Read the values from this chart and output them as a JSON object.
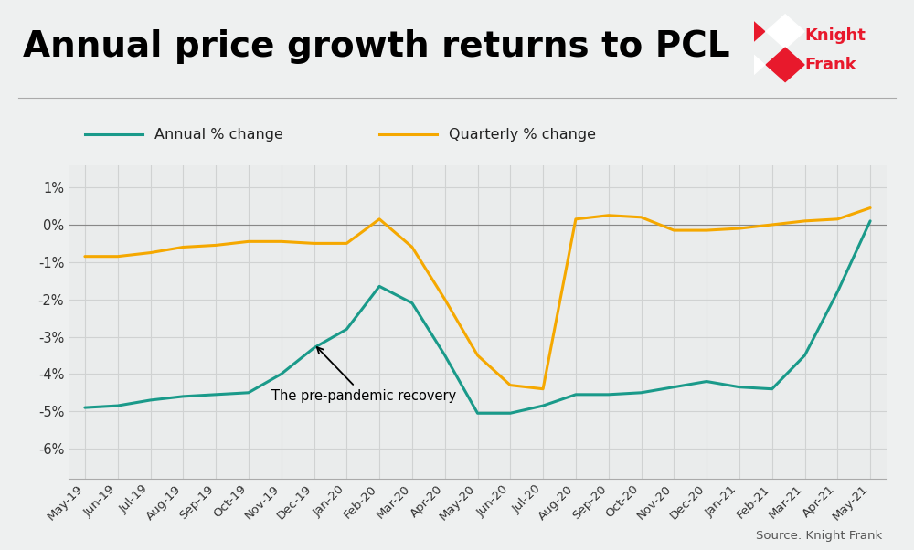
{
  "title": "Annual price growth returns to PCL",
  "background_color": "#eef0f0",
  "plot_bg_color": "#eaecec",
  "source_text": "Source: Knight Frank",
  "annotation_text": "The pre-pandemic recovery",
  "x_labels": [
    "May-19",
    "Jun-19",
    "Jul-19",
    "Aug-19",
    "Sep-19",
    "Oct-19",
    "Nov-19",
    "Dec-19",
    "Jan-20",
    "Feb-20",
    "Mar-20",
    "Apr-20",
    "May-20",
    "Jun-20",
    "Jul-20",
    "Aug-20",
    "Sep-20",
    "Oct-20",
    "Nov-20",
    "Dec-20",
    "Jan-21",
    "Feb-21",
    "Mar-21",
    "Apr-21",
    "May-21"
  ],
  "annual_pct": [
    -4.9,
    -4.85,
    -4.7,
    -4.6,
    -4.55,
    -4.5,
    -4.0,
    -3.3,
    -2.8,
    -1.65,
    -2.1,
    -3.5,
    -5.05,
    -5.05,
    -4.85,
    -4.55,
    -4.55,
    -4.5,
    -4.35,
    -4.2,
    -4.35,
    -4.4,
    -3.5,
    -1.8,
    0.1
  ],
  "quarterly_pct": [
    -0.85,
    -0.85,
    -0.75,
    -0.6,
    -0.55,
    -0.45,
    -0.45,
    -0.5,
    -0.5,
    0.15,
    -0.6,
    -2.0,
    -3.5,
    -4.3,
    -4.4,
    0.15,
    0.25,
    0.2,
    -0.15,
    -0.15,
    -0.1,
    0.0,
    0.1,
    0.15,
    0.45
  ],
  "annual_color": "#1a9a8a",
  "quarterly_color": "#f5a800",
  "ylim_low": -0.068,
  "ylim_high": 0.016,
  "ytick_vals": [
    0.01,
    0.0,
    -0.01,
    -0.02,
    -0.03,
    -0.04,
    -0.05,
    -0.06
  ],
  "ytick_labels": [
    "1%",
    "0%",
    "-1%",
    "-2%",
    "-3%",
    "-4%",
    "-5%",
    "-6%"
  ],
  "legend_annual_label": "Annual % change",
  "legend_quarterly_label": "Quarterly % change",
  "line_width": 2.2,
  "kf_red": "#e8192c",
  "separator_color": "#aaaaaa",
  "grid_color": "#d0d2d2",
  "source_color": "#555555"
}
